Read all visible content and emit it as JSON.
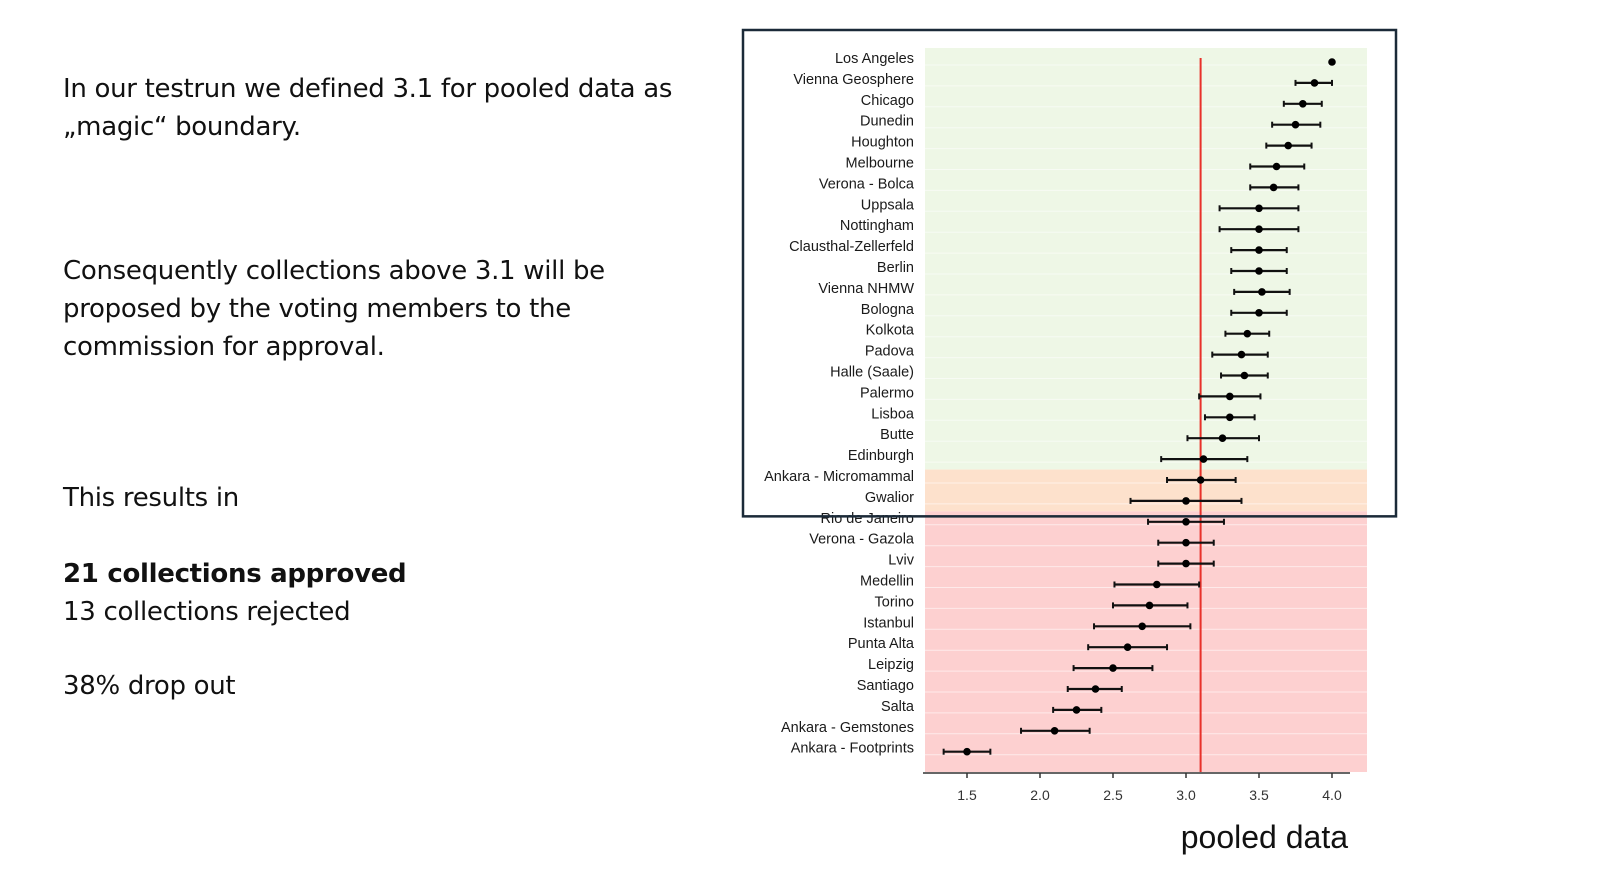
{
  "text": {
    "intro": "In our testrun we defined 3.1 for pooled data as „magic“ boundary.",
    "consequence": "Consequently collections above 3.1 will be proposed by the voting members to the commission for approval.",
    "results_intro": "This results in",
    "approved": "21 collections approved",
    "rejected": "13 collections rejected",
    "dropout": "38% drop out"
  },
  "chart_data": {
    "type": "scatter",
    "subtype": "forest-plot (point with error bars)",
    "title": "",
    "xlabel": "pooled data",
    "ylabel": "",
    "xlim": [
      1.25,
      4.1
    ],
    "xticks": [
      1.5,
      2.0,
      2.5,
      3.0,
      3.5,
      4.0
    ],
    "xtick_labels": [
      "1.5",
      "2.0",
      "2.5",
      "3.0",
      "3.5",
      "4.0"
    ],
    "threshold": {
      "value": 3.1,
      "color": "#e8312a",
      "label": "magic boundary"
    },
    "regions": [
      {
        "name": "approved",
        "from_row": 0,
        "to_row": 19,
        "color": "#eef7e6"
      },
      {
        "name": "borderline",
        "from_row": 20,
        "to_row": 21,
        "color": "#fde1cc"
      },
      {
        "name": "rejected",
        "from_row": 22,
        "to_row": 33,
        "color": "#fdd0d0"
      }
    ],
    "highlight_box": {
      "from_row": 0,
      "to_row": 21,
      "color": "#1b2a38"
    },
    "grid": true,
    "legend": "none",
    "categories": [
      "Los Angeles",
      "Vienna Geosphere",
      "Chicago",
      "Dunedin",
      "Houghton",
      "Melbourne",
      "Verona - Bolca",
      "Uppsala",
      "Nottingham",
      "Clausthal-Zellerfeld",
      "Berlin",
      "Vienna NHMW",
      "Bologna",
      "Kolkota",
      "Padova",
      "Halle (Saale)",
      "Palermo",
      "Lisboa",
      "Butte",
      "Edinburgh",
      "Ankara - Micromammal",
      "Gwalior",
      "Rio de Janeiro",
      "Verona - Gazola",
      "Lviv",
      "Medellin",
      "Torino",
      "Istanbul",
      "Punta Alta",
      "Leipzig",
      "Santiago",
      "Salta",
      "Ankara - Gemstones",
      "Ankara - Footprints"
    ],
    "values": [
      4.0,
      3.88,
      3.8,
      3.75,
      3.7,
      3.62,
      3.6,
      3.5,
      3.5,
      3.5,
      3.5,
      3.52,
      3.5,
      3.42,
      3.38,
      3.4,
      3.3,
      3.3,
      3.25,
      3.12,
      3.1,
      3.0,
      3.0,
      3.0,
      3.0,
      2.8,
      2.75,
      2.7,
      2.6,
      2.5,
      2.38,
      2.25,
      2.1,
      1.5
    ],
    "lower": [
      null,
      3.75,
      3.67,
      3.59,
      3.55,
      3.44,
      3.44,
      3.23,
      3.23,
      3.31,
      3.31,
      3.33,
      3.31,
      3.27,
      3.18,
      3.24,
      3.09,
      3.13,
      3.01,
      2.83,
      2.87,
      2.62,
      2.74,
      2.81,
      2.81,
      2.51,
      2.5,
      2.37,
      2.33,
      2.23,
      2.19,
      2.09,
      1.87,
      1.34
    ],
    "upper": [
      null,
      4.0,
      3.93,
      3.92,
      3.86,
      3.81,
      3.77,
      3.77,
      3.77,
      3.69,
      3.69,
      3.71,
      3.69,
      3.57,
      3.56,
      3.56,
      3.51,
      3.47,
      3.5,
      3.42,
      3.34,
      3.38,
      3.26,
      3.19,
      3.19,
      3.09,
      3.01,
      3.03,
      2.87,
      2.77,
      2.56,
      2.42,
      2.34,
      1.66
    ]
  }
}
